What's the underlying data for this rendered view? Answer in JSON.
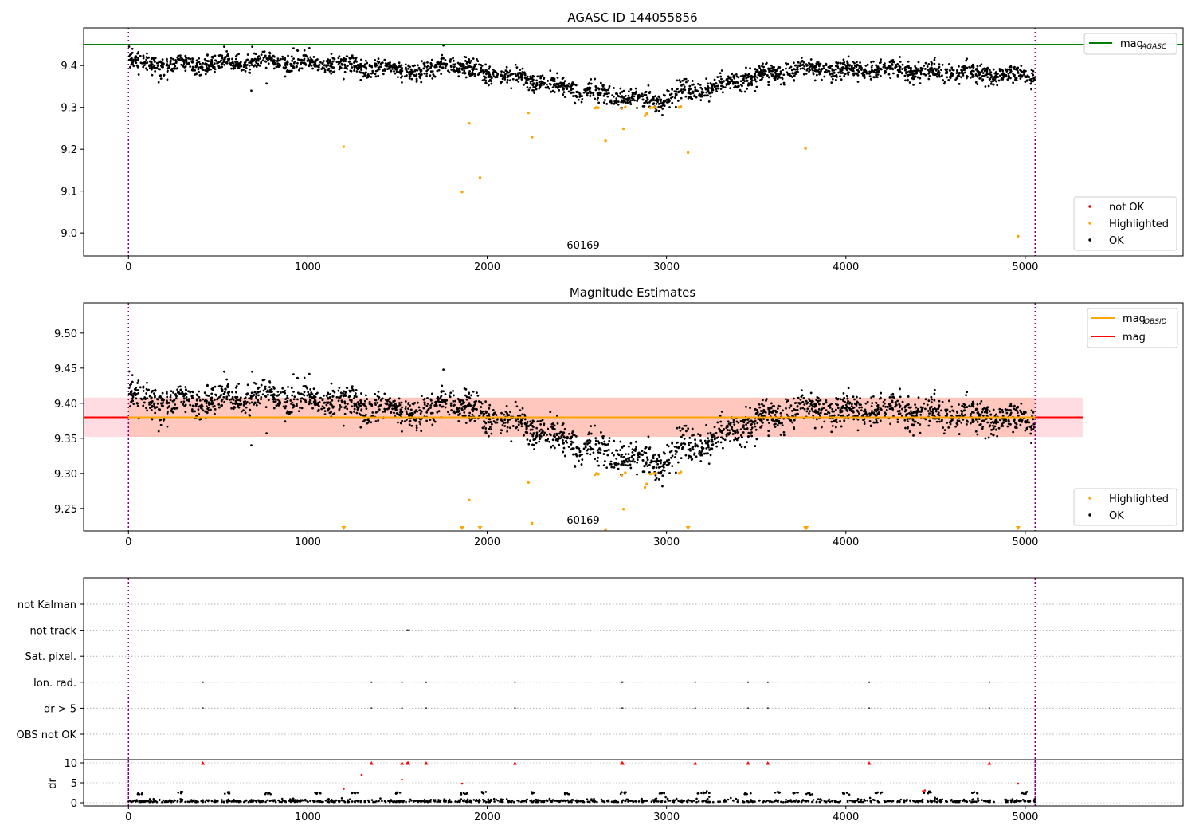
{
  "chart_data": [
    {
      "type": "scatter",
      "title": "AGASC ID 144055856",
      "xlim": [
        -250,
        5880
      ],
      "ylim": [
        8.945,
        9.49
      ],
      "xticks": [
        0,
        1000,
        2000,
        3000,
        4000,
        5000
      ],
      "yticks": [
        9.0,
        9.1,
        9.2,
        9.3,
        9.4
      ],
      "obs_boundaries": [
        0,
        5055
      ],
      "obsid_annotation": {
        "text": "60169",
        "x": 2530,
        "y": 8.97
      },
      "mag_agasc": 9.45,
      "line_legend": {
        "entries": [
          {
            "name": "mag",
            "sub": "AGASC",
            "color": "#008000"
          }
        ],
        "position": "upper right"
      },
      "marker_legend": {
        "entries": [
          {
            "name": "not OK",
            "color": "#ff0000"
          },
          {
            "name": "Highlighted",
            "color": "#ffa500"
          },
          {
            "name": "OK",
            "color": "#000000"
          }
        ],
        "position": "lower right"
      },
      "ok_trend": [
        [
          0,
          9.415
        ],
        [
          200,
          9.4
        ],
        [
          500,
          9.405
        ],
        [
          800,
          9.41
        ],
        [
          1100,
          9.405
        ],
        [
          1400,
          9.39
        ],
        [
          1700,
          9.385
        ],
        [
          1750,
          9.41
        ],
        [
          1850,
          9.395
        ],
        [
          2000,
          9.38
        ],
        [
          2200,
          9.37
        ],
        [
          2400,
          9.35
        ],
        [
          2600,
          9.335
        ],
        [
          2800,
          9.32
        ],
        [
          2950,
          9.315
        ],
        [
          3100,
          9.335
        ],
        [
          3300,
          9.355
        ],
        [
          3500,
          9.375
        ],
        [
          3700,
          9.39
        ],
        [
          3900,
          9.39
        ],
        [
          4100,
          9.39
        ],
        [
          4300,
          9.39
        ],
        [
          4500,
          9.385
        ],
        [
          4700,
          9.38
        ],
        [
          4900,
          9.38
        ],
        [
          5055,
          9.37
        ]
      ],
      "ok_outliers": [
        [
          685,
          9.34
        ],
        [
          690,
          9.445
        ],
        [
          1756,
          9.448
        ],
        [
          770,
          9.357
        ]
      ],
      "highlighted_points": [
        [
          1200,
          9.206
        ],
        [
          1860,
          9.098
        ],
        [
          1900,
          9.262
        ],
        [
          1960,
          9.132
        ],
        [
          2230,
          9.287
        ],
        [
          2250,
          9.229
        ],
        [
          2600,
          9.298
        ],
        [
          2610,
          9.3
        ],
        [
          2620,
          9.299
        ],
        [
          2660,
          9.22
        ],
        [
          2750,
          9.297
        ],
        [
          2760,
          9.249
        ],
        [
          2770,
          9.301
        ],
        [
          2880,
          9.28
        ],
        [
          2890,
          9.285
        ],
        [
          2910,
          9.299
        ],
        [
          2930,
          9.3
        ],
        [
          2940,
          9.3
        ],
        [
          3070,
          9.3
        ],
        [
          3080,
          9.302
        ],
        [
          3120,
          9.192
        ],
        [
          3775,
          9.202
        ],
        [
          4960,
          8.992
        ]
      ]
    },
    {
      "type": "scatter",
      "title": "Magnitude Estimates",
      "xlim": [
        -250,
        5880
      ],
      "ylim": [
        9.218,
        9.543
      ],
      "xticks": [
        0,
        1000,
        2000,
        3000,
        4000,
        5000
      ],
      "yticks": [
        9.25,
        9.3,
        9.35,
        9.4,
        9.45,
        9.5
      ],
      "ytick_labels": [
        "9.25",
        "9.30",
        "9.35",
        "9.40",
        "9.45",
        "9.50"
      ],
      "obs_boundaries": [
        0,
        5055
      ],
      "obsid_annotation": {
        "text": "60169",
        "x": 2530,
        "y": 9.226
      },
      "mag_obsid": 9.38,
      "mag": 9.38,
      "mag_band": [
        9.352,
        9.408
      ],
      "band_x_range": [
        -250,
        5320
      ],
      "line_legend": {
        "entries": [
          {
            "name": "mag",
            "sub": "OBSID",
            "color": "#ffa500"
          },
          {
            "name": "mag",
            "sub": "",
            "color": "#ff0000"
          }
        ],
        "position": "upper right"
      },
      "marker_legend": {
        "entries": [
          {
            "name": "Highlighted",
            "color": "#ffa500"
          },
          {
            "name": "OK",
            "color": "#000000"
          }
        ],
        "position": "lower right"
      },
      "below_axis_markers_x": [
        1200,
        1860,
        1960,
        3120,
        3775,
        3780,
        4960
      ]
    },
    {
      "type": "scatter",
      "title": "",
      "xlim": [
        -250,
        5880
      ],
      "xticks": [
        0,
        1000,
        2000,
        3000,
        4000,
        5000
      ],
      "obs_boundaries": [
        0,
        5055
      ],
      "flag_categories": [
        "OBS not OK",
        "dr > 5",
        "Ion. rad.",
        "Sat. pixel.",
        "not track",
        "not Kalman"
      ],
      "flag_points": {
        "Ion. rad.": [
          415,
          1355,
          1525,
          1660,
          2155,
          2750,
          2755,
          3160,
          3455,
          3565,
          4130,
          4800
        ],
        "dr > 5": [
          415,
          1355,
          1525,
          1660,
          2155,
          2750,
          2755,
          3160,
          3455,
          3565,
          4130,
          4800
        ],
        "not track": [
          1555,
          1565
        ]
      },
      "dr_panel": {
        "ylabel": "dr",
        "ylim": [
          -0.8,
          10.8
        ],
        "yticks": [
          0,
          5,
          10
        ],
        "red_points": [
          [
            415,
            9.9
          ],
          [
            1355,
            9.9
          ],
          [
            1525,
            9.9
          ],
          [
            1555,
            9.9
          ],
          [
            1560,
            9.9
          ],
          [
            1660,
            9.9
          ],
          [
            2155,
            9.9
          ],
          [
            2750,
            9.9
          ],
          [
            2755,
            9.9
          ],
          [
            3160,
            9.9
          ],
          [
            3455,
            9.9
          ],
          [
            3565,
            9.9
          ],
          [
            4130,
            9.9
          ],
          [
            4800,
            9.9
          ],
          [
            1525,
            5.8
          ],
          [
            1860,
            4.8
          ],
          [
            1200,
            3.5
          ],
          [
            4960,
            4.8
          ],
          [
            4430,
            2.9
          ],
          [
            4440,
            3.1
          ],
          [
            1300,
            7.0
          ]
        ],
        "black_clumps": [
          [
            60,
            2.3
          ],
          [
            290,
            2.6
          ],
          [
            545,
            2.5
          ],
          [
            780,
            2.3
          ],
          [
            1060,
            2.3
          ],
          [
            1260,
            2.4
          ],
          [
            1510,
            2.5
          ],
          [
            1870,
            2.3
          ],
          [
            1985,
            2.5
          ],
          [
            2260,
            2.5
          ],
          [
            2445,
            2.4
          ],
          [
            2760,
            2.5
          ],
          [
            2980,
            2.4
          ],
          [
            3190,
            2.5
          ],
          [
            3220,
            2.7
          ],
          [
            3455,
            2.3
          ],
          [
            3625,
            2.5
          ],
          [
            3715,
            2.4
          ],
          [
            3800,
            2.2
          ],
          [
            4000,
            2.3
          ],
          [
            4185,
            2.5
          ],
          [
            4455,
            2.6
          ],
          [
            4720,
            2.5
          ],
          [
            4990,
            2.5
          ]
        ]
      }
    }
  ]
}
